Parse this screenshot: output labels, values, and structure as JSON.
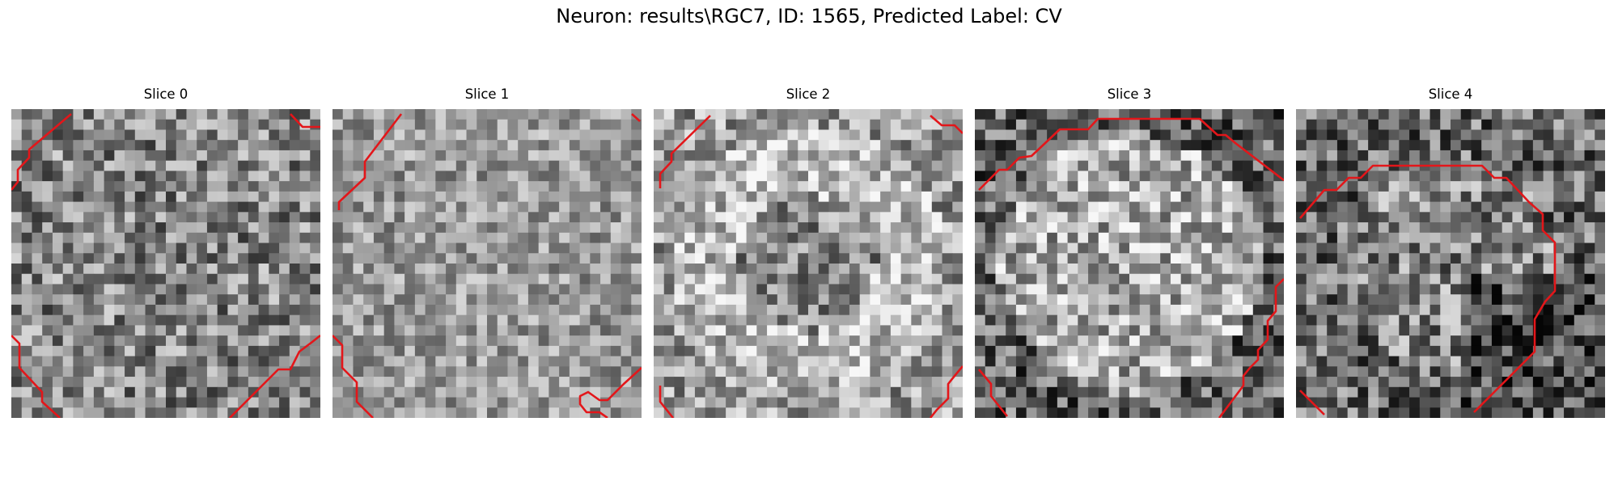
{
  "figure": {
    "title": "Neuron: results\\RGC7, ID: 1565, Predicted Label: CV",
    "contour_color": "#e3161a"
  },
  "panels": [
    {
      "label": "Slice 0",
      "brightness": 0.52,
      "contrast": 0.32,
      "shape": "none",
      "seed": 11
    },
    {
      "label": "Slice 1",
      "brightness": 0.6,
      "contrast": 0.24,
      "shape": "none",
      "seed": 23
    },
    {
      "label": "Slice 2",
      "brightness": 0.62,
      "contrast": 0.3,
      "shape": "ring",
      "seed": 37
    },
    {
      "label": "Slice 3",
      "brightness": 0.52,
      "contrast": 0.34,
      "shape": "blob",
      "seed": 51
    },
    {
      "label": "Slice 4",
      "brightness": 0.46,
      "contrast": 0.34,
      "shape": "dark",
      "seed": 67
    }
  ]
}
